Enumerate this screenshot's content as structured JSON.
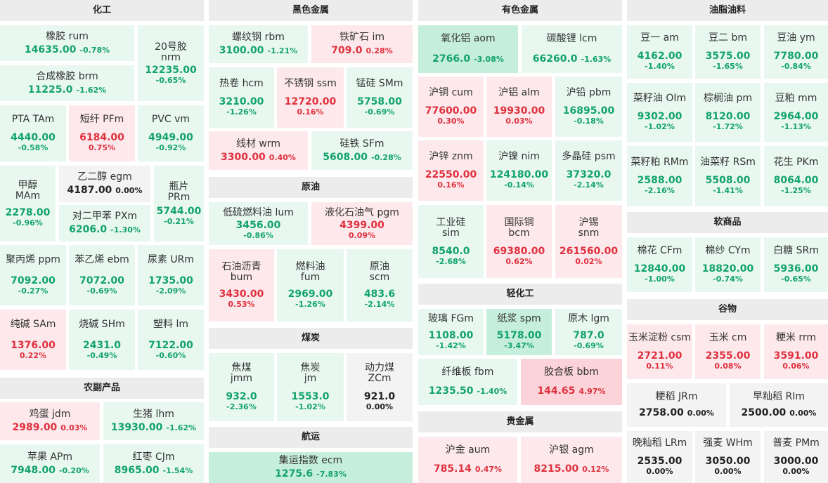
{
  "sections": {
    "chemical": "化工",
    "agri": "农副产品",
    "ferrous": "黑色金属",
    "crude": "原油",
    "coal": "煤炭",
    "shipping": "航运",
    "nonferrous": "有色金属",
    "light": "轻化工",
    "precious": "贵金属",
    "oils": "油脂油料",
    "softs": "软商品",
    "grains": "谷物"
  },
  "items": {
    "rum": {
      "name": "橡胶  rum",
      "price": "14635.00",
      "change": "-0.78%"
    },
    "nrm": {
      "name": "20号胶",
      "code": "nrm",
      "price": "12235.00",
      "change": "-0.65%"
    },
    "brm": {
      "name": "合成橡胶  brm",
      "price": "11225.0",
      "change": "-1.62%"
    },
    "tam": {
      "name": "PTA  TAm",
      "price": "4440.00",
      "change": "-0.58%"
    },
    "pfm": {
      "name": "短纤  PFm",
      "price": "6184.00",
      "change": "0.75%"
    },
    "vm": {
      "name": "PVC  vm",
      "price": "4949.00",
      "change": "-0.92%"
    },
    "mam": {
      "name": "甲醇",
      "code": "MAm",
      "price": "2278.00",
      "change": "-0.96%"
    },
    "egm": {
      "name": "乙二醇  egm",
      "price": "4187.00",
      "change": "0.00%"
    },
    "pxm": {
      "name": "对二甲苯  PXm",
      "price": "6206.0",
      "change": "-1.30%"
    },
    "prm": {
      "name": "瓶片",
      "code": "PRm",
      "price": "5744.00",
      "change": "-0.21%"
    },
    "ppm": {
      "name": "聚丙烯  ppm",
      "price": "7092.00",
      "change": "-0.27%"
    },
    "ebm": {
      "name": "苯乙烯  ebm",
      "price": "7072.00",
      "change": "-0.69%"
    },
    "urm": {
      "name": "尿素  URm",
      "price": "1735.00",
      "change": "-2.09%"
    },
    "sam": {
      "name": "纯碱  SAm",
      "price": "1376.00",
      "change": "0.22%"
    },
    "shm": {
      "name": "烧碱  SHm",
      "price": "2431.0",
      "change": "-0.49%"
    },
    "lm": {
      "name": "塑料  lm",
      "price": "7122.00",
      "change": "-0.60%"
    },
    "jdm": {
      "name": "鸡蛋  jdm",
      "price": "2989.00",
      "change": "0.03%"
    },
    "lhm": {
      "name": "生猪  lhm",
      "price": "13930.00",
      "change": "-1.62%"
    },
    "apm": {
      "name": "苹果  APm",
      "price": "7948.00",
      "change": "-0.20%"
    },
    "cjm": {
      "name": "红枣  CJm",
      "price": "8965.00",
      "change": "-1.54%"
    },
    "rbm": {
      "name": "螺纹钢  rbm",
      "price": "3100.00",
      "change": "-1.21%"
    },
    "im": {
      "name": "铁矿石  im",
      "price": "709.0",
      "change": "0.28%"
    },
    "hcm": {
      "name": "热卷  hcm",
      "price": "3210.00",
      "change": "-1.26%"
    },
    "ssm": {
      "name": "不锈钢  ssm",
      "price": "12720.00",
      "change": "0.16%"
    },
    "smm": {
      "name": "锰硅  SMm",
      "price": "5758.00",
      "change": "-0.69%"
    },
    "wrm": {
      "name": "线材  wrm",
      "price": "3300.00",
      "change": "0.40%"
    },
    "sfm": {
      "name": "硅铁  SFm",
      "price": "5608.00",
      "change": "-0.28%"
    },
    "lum": {
      "name": "低硫燃料油  lum",
      "price": "3456.00",
      "change": "-0.86%"
    },
    "pgm": {
      "name": "液化石油气  pgm",
      "price": "4399.00",
      "change": "0.09%"
    },
    "bum": {
      "name": "石油沥青",
      "code": "bum",
      "price": "3430.00",
      "change": "0.53%"
    },
    "fum": {
      "name": "燃料油",
      "code": "fum",
      "price": "2969.00",
      "change": "-1.26%"
    },
    "scm": {
      "name": "原油",
      "code": "scm",
      "price": "483.6",
      "change": "-2.14%"
    },
    "jmm": {
      "name": "焦煤",
      "code": "jmm",
      "price": "932.0",
      "change": "-2.36%"
    },
    "jm": {
      "name": "焦炭",
      "code": "jm",
      "price": "1553.0",
      "change": "-1.02%"
    },
    "zcm": {
      "name": "动力煤",
      "code": "ZCm",
      "price": "921.0",
      "change": "0.00%"
    },
    "ecm": {
      "name": "集运指数  ecm",
      "price": "1275.6",
      "change": "-7.83%"
    },
    "aom": {
      "name": "氧化铝  aom",
      "price": "2766.0",
      "change": "-3.08%"
    },
    "lcm": {
      "name": "碳酸锂  lcm",
      "price": "66260.0",
      "change": "-1.63%"
    },
    "cum": {
      "name": "沪铜  cum",
      "price": "77600.00",
      "change": "0.30%"
    },
    "alm": {
      "name": "沪铝  alm",
      "price": "19930.00",
      "change": "0.03%"
    },
    "pbm": {
      "name": "沪铅  pbm",
      "price": "16895.00",
      "change": "-0.18%"
    },
    "znm": {
      "name": "沪锌  znm",
      "price": "22550.00",
      "change": "0.16%"
    },
    "nim": {
      "name": "沪镍  nim",
      "price": "124180.00",
      "change": "-0.14%"
    },
    "psm": {
      "name": "多晶硅  psm",
      "price": "37320.0",
      "change": "-2.14%"
    },
    "sim": {
      "name": "工业硅",
      "code": "sim",
      "price": "8540.0",
      "change": "-2.68%"
    },
    "bcm": {
      "name": "国际铜",
      "code": "bcm",
      "price": "69380.00",
      "change": "0.62%"
    },
    "snm": {
      "name": "沪锡",
      "code": "snm",
      "price": "261560.00",
      "change": "0.02%"
    },
    "fgm": {
      "name": "玻璃  FGm",
      "price": "1108.00",
      "change": "-1.42%"
    },
    "spm": {
      "name": "纸浆  spm",
      "price": "5178.00",
      "change": "-3.47%"
    },
    "lgm": {
      "name": "原木  lgm",
      "price": "787.0",
      "change": "-0.69%"
    },
    "fbm": {
      "name": "纤维板  fbm",
      "price": "1235.50",
      "change": "-1.40%"
    },
    "bbm": {
      "name": "胶合板  bbm",
      "price": "144.65",
      "change": "4.97%"
    },
    "aum": {
      "name": "沪金  aum",
      "price": "785.14",
      "change": "0.47%"
    },
    "agm": {
      "name": "沪银  agm",
      "price": "8215.00",
      "change": "0.12%"
    },
    "am": {
      "name": "豆一  am",
      "price": "4162.00",
      "change": "-1.40%"
    },
    "bm": {
      "name": "豆二  bm",
      "price": "3575.00",
      "change": "-1.65%"
    },
    "ym": {
      "name": "豆油  ym",
      "price": "7780.00",
      "change": "-0.84%"
    },
    "oim": {
      "name": "菜籽油  OIm",
      "price": "9302.00",
      "change": "-1.02%"
    },
    "pm": {
      "name": "棕榈油  pm",
      "price": "8120.00",
      "change": "-1.72%"
    },
    "mm": {
      "name": "豆粕  mm",
      "price": "2964.00",
      "change": "-1.13%"
    },
    "rmm": {
      "name": "菜籽粕  RMm",
      "price": "2588.00",
      "change": "-2.16%"
    },
    "rsm": {
      "name": "油菜籽  RSm",
      "price": "5508.00",
      "change": "-1.41%"
    },
    "pkm": {
      "name": "花生  PKm",
      "price": "8064.00",
      "change": "-1.25%"
    },
    "cfm": {
      "name": "棉花  CFm",
      "price": "12840.00",
      "change": "-1.00%"
    },
    "cym": {
      "name": "棉纱  CYm",
      "price": "18820.00",
      "change": "-0.74%"
    },
    "srm": {
      "name": "白糖  SRm",
      "price": "5936.00",
      "change": "-0.65%"
    },
    "csm": {
      "name": "玉米淀粉  csm",
      "price": "2721.00",
      "change": "0.11%"
    },
    "cm": {
      "name": "玉米  cm",
      "price": "2355.00",
      "change": "0.08%"
    },
    "rrm": {
      "name": "粳米  rrm",
      "price": "3591.00",
      "change": "0.06%"
    },
    "jrm": {
      "name": "粳稻  JRm",
      "price": "2758.00",
      "change": "0.00%"
    },
    "rim": {
      "name": "早籼稻  RIm",
      "price": "2500.00",
      "change": "0.00%"
    },
    "lrm": {
      "name": "晚籼稻  LRm",
      "price": "2535.00",
      "change": "0.00%"
    },
    "whm": {
      "name": "强麦  WHm",
      "price": "3050.00",
      "change": "0.00%"
    },
    "pmm": {
      "name": "普麦  PMm",
      "price": "3000.00",
      "change": "0.00%"
    }
  },
  "colors": {
    "up": "#e0303e",
    "down": "#12a36a",
    "up_bg_light": "#fde9ec",
    "up_bg_strong": "#fbd3d8",
    "down_bg_light": "#e8f8f0",
    "down_bg_strong": "#c6eedc",
    "flat_bg": "#f3f3f3"
  }
}
